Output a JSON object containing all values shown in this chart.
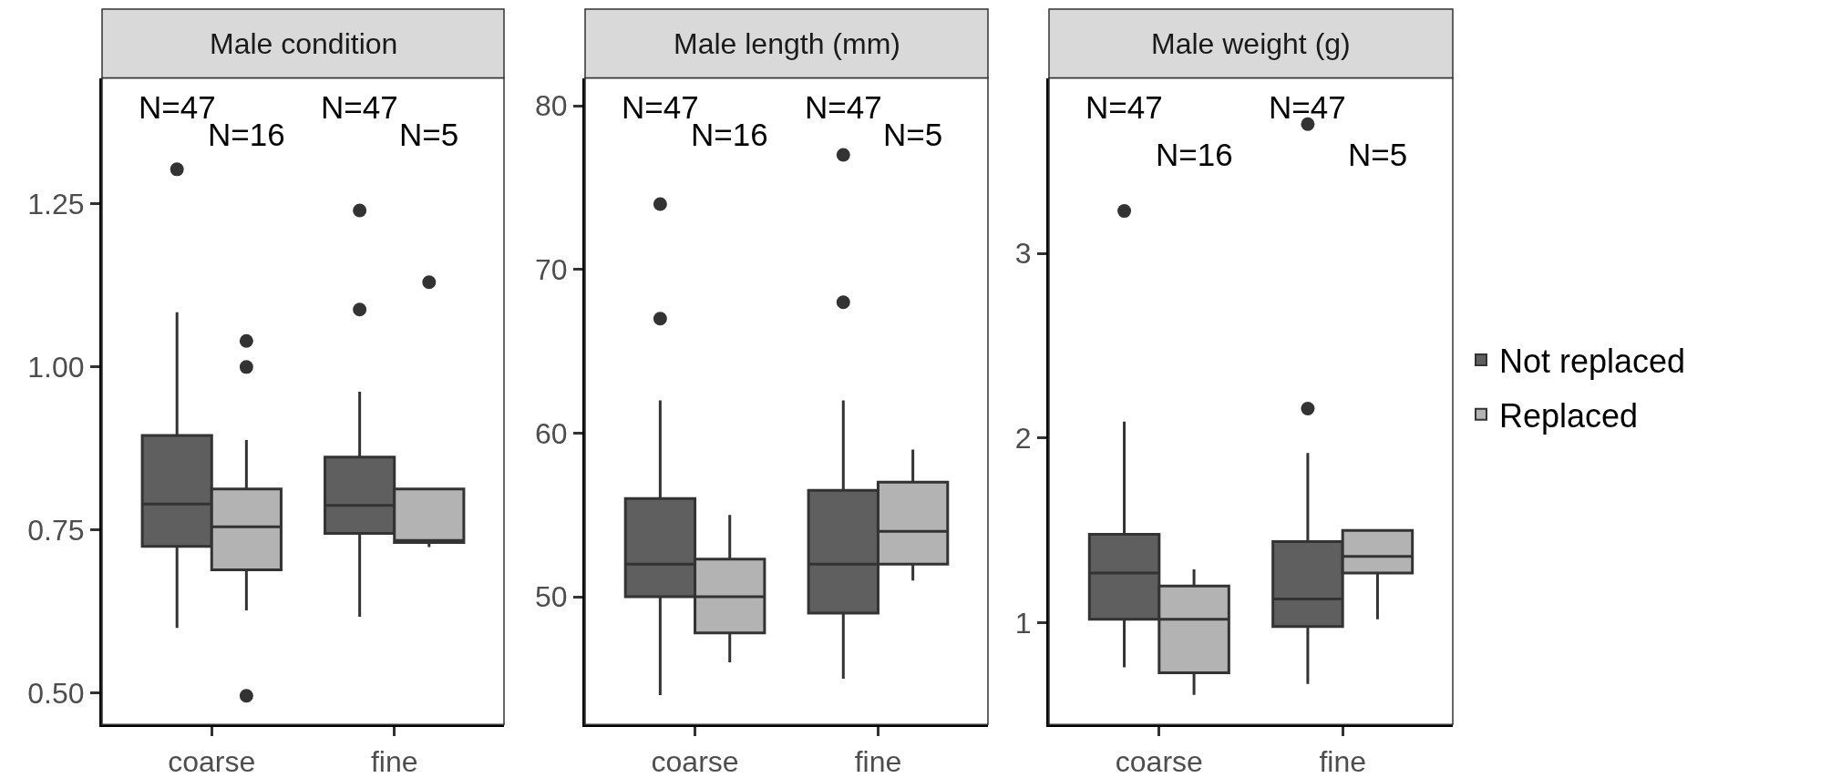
{
  "chart_data": [
    {
      "type": "box",
      "title": "Male condition",
      "categories": [
        "coarse",
        "fine"
      ],
      "series": [
        {
          "name": "Not replaced",
          "color": "#5f5f5f",
          "boxes": [
            {
              "low": 0.6,
              "q1": 0.725,
              "median": 0.79,
              "q3": 0.895,
              "high": 1.084,
              "outliers": [
                1.303
              ]
            },
            {
              "low": 0.617,
              "q1": 0.745,
              "median": 0.788,
              "q3": 0.862,
              "high": 0.962,
              "outliers": [
                1.24,
                1.088
              ]
            }
          ]
        },
        {
          "name": "Replaced",
          "color": "#b3b3b3",
          "boxes": [
            {
              "low": 0.627,
              "q1": 0.689,
              "median": 0.755,
              "q3": 0.813,
              "high": 0.888,
              "outliers": [
                1.04,
                1.0,
                0.496
              ]
            },
            {
              "low": 0.724,
              "q1": 0.731,
              "median": 0.734,
              "q3": 0.813,
              "high": 0.813,
              "outliers": [
                1.13
              ]
            }
          ]
        }
      ],
      "ylim": [
        0.452,
        1.443
      ],
      "yticks": [
        {
          "value": 0.5,
          "label": "0.50"
        },
        {
          "value": 0.75,
          "label": "0.75"
        },
        {
          "value": 1.0,
          "label": "1.00"
        },
        {
          "value": 1.25,
          "label": "1.25"
        }
      ],
      "annotations": [
        "N=47",
        "N=16",
        "N=47",
        "N=5"
      ],
      "legend": "right"
    },
    {
      "type": "box",
      "title": "Male length (mm)",
      "categories": [
        "coarse",
        "fine"
      ],
      "series": [
        {
          "name": "Not replaced",
          "color": "#5f5f5f",
          "boxes": [
            {
              "low": 44,
              "q1": 50,
              "median": 52,
              "q3": 56,
              "high": 62,
              "outliers": [
                74,
                67
              ]
            },
            {
              "low": 45,
              "q1": 49,
              "median": 52,
              "q3": 56.5,
              "high": 62,
              "outliers": [
                77,
                68
              ]
            }
          ]
        },
        {
          "name": "Replaced",
          "color": "#b3b3b3",
          "boxes": [
            {
              "low": 46,
              "q1": 47.8,
              "median": 50,
              "q3": 52.3,
              "high": 55
            },
            {
              "low": 51,
              "q1": 52,
              "median": 54,
              "q3": 57,
              "high": 59
            }
          ]
        }
      ],
      "ylim": [
        42.2,
        81.7
      ],
      "yticks": [
        50,
        60,
        70,
        80
      ],
      "annotations": [
        "N=47",
        "N=16",
        "N=47",
        "N=5"
      ],
      "legend": "right"
    },
    {
      "type": "box",
      "title": "Male weight (g)",
      "categories": [
        "coarse",
        "fine"
      ],
      "series": [
        {
          "name": "Not replaced",
          "color": "#5f5f5f",
          "boxes": [
            {
              "low": 0.76,
              "q1": 1.02,
              "median": 1.27,
              "q3": 1.48,
              "high": 2.09,
              "outliers": [
                3.23
              ]
            },
            {
              "low": 0.67,
              "q1": 0.98,
              "median": 1.13,
              "q3": 1.44,
              "high": 1.92,
              "outliers": [
                3.7,
                2.16
              ]
            }
          ]
        },
        {
          "name": "Replaced",
          "color": "#b3b3b3",
          "boxes": [
            {
              "low": 0.61,
              "q1": 0.73,
              "median": 1.02,
              "q3": 1.2,
              "high": 1.29
            },
            {
              "low": 1.02,
              "q1": 1.27,
              "median": 1.36,
              "q3": 1.5,
              "high": 1.5
            }
          ]
        }
      ],
      "ylim": [
        0.45,
        3.95
      ],
      "yticks": [
        1,
        2,
        3
      ],
      "annotations": [
        "N=47",
        "N=16",
        "N=47",
        "N=5"
      ],
      "legend": "right"
    }
  ]
}
